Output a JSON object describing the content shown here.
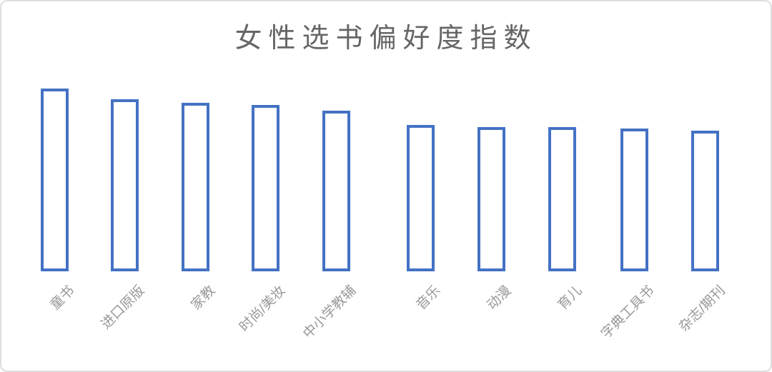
{
  "chart_data": {
    "type": "bar",
    "title": "女性选书偏好度指数",
    "categories": [
      "童书",
      "进口原版",
      "家教",
      "时尚/美妆",
      "中小学教辅",
      "音乐",
      "动漫",
      "育儿",
      "字典工具书",
      "杂志/期刊"
    ],
    "values": [
      100,
      94,
      92,
      91,
      88,
      80,
      79,
      79,
      78,
      77
    ],
    "values_note": "value axis is hidden in the image; values are relative index estimates with the tallest bar (童书) = 100",
    "xlabel": "",
    "ylabel": "",
    "legend": "none",
    "grid": false,
    "axis_lines": "none",
    "x_label_rotation_deg": -45,
    "colors": {
      "bar_fill": "#ffffff",
      "bar_border": "#4472c4",
      "title_text": "#666666",
      "axis_label_text": "#999999",
      "frame_border": "#dedede",
      "background": "#ffffff"
    }
  }
}
